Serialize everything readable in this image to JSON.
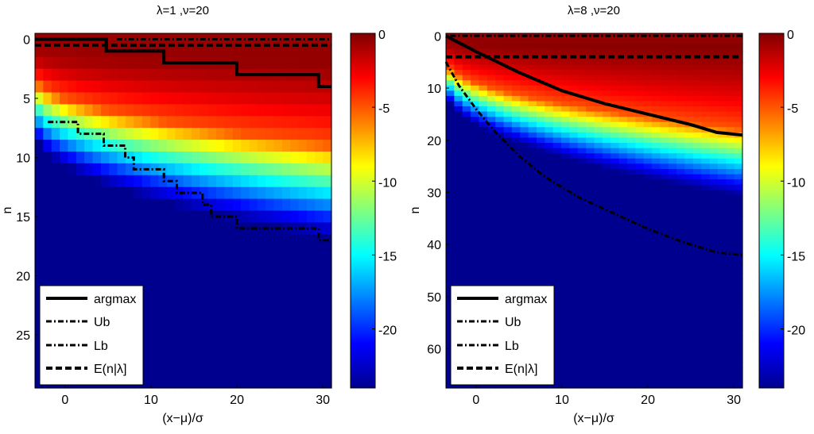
{
  "colormap": {
    "name": "jet",
    "stops": [
      "#00008f",
      "#0000ff",
      "#00ffff",
      "#ffff00",
      "#ff0000",
      "#800000"
    ]
  },
  "chart_data": [
    {
      "type": "heatmap",
      "title": "λ=1 ,ν=20",
      "xlabel": "(x−μ)/σ",
      "ylabel": "n",
      "xlim": [
        -3.5,
        31
      ],
      "ylim": [
        -0.5,
        29.5
      ],
      "xticks": [
        0,
        10,
        20,
        30
      ],
      "yticks": [
        0,
        5,
        10,
        15,
        20,
        25
      ],
      "n_bins": 30,
      "lower_boundary_coeffs": [
        3.2,
        0.98
      ],
      "log_prob_floor": -24,
      "colorbar": {
        "min": -24,
        "max": 0,
        "ticks": [
          0,
          -5,
          -10,
          -15,
          -20
        ]
      },
      "legend": [
        "argmax",
        "Ub",
        "Lb",
        "E(n|λ]"
      ],
      "series": [
        {
          "name": "argmax",
          "x": [
            -3.5,
            4.8,
            4.8,
            11.5,
            11.5,
            20,
            20,
            29.5,
            29.5,
            31
          ],
          "y": [
            0,
            0,
            1,
            1,
            2,
            2,
            3,
            3,
            4,
            4
          ]
        },
        {
          "name": "Ub",
          "x": [
            6,
            31
          ],
          "y": [
            0,
            0
          ]
        },
        {
          "name": "Lb",
          "x": [
            -2,
            1.5,
            1.5,
            4.5,
            4.5,
            7,
            7,
            8,
            8,
            11.5,
            11.5,
            13,
            13,
            16,
            16,
            17,
            17,
            20,
            20,
            22,
            22,
            24,
            24,
            29.5,
            29.5,
            31
          ],
          "y": [
            7,
            7,
            8,
            8,
            9,
            9,
            10,
            10,
            11,
            11,
            12,
            12,
            13,
            13,
            14,
            14,
            15,
            15,
            16,
            16,
            16,
            16,
            16,
            16,
            17,
            17
          ]
        },
        {
          "name": "E(n|λ]",
          "x": [
            -3.5,
            31
          ],
          "y": [
            0.5,
            0.5
          ]
        }
      ]
    },
    {
      "type": "heatmap",
      "title": "λ=8 ,ν=20",
      "xlabel": "(x−μ)/σ",
      "ylabel": "n",
      "xlim": [
        -3.5,
        31
      ],
      "ylim": [
        -0.5,
        67.5
      ],
      "xticks": [
        0,
        10,
        20,
        30
      ],
      "yticks": [
        0,
        10,
        20,
        30,
        40,
        50,
        60
      ],
      "n_bins": 68,
      "lower_boundary_coeffs": [
        5,
        2.2
      ],
      "log_prob_floor": -24,
      "colorbar": {
        "min": -24,
        "max": 0,
        "ticks": [
          0,
          -5,
          -10,
          -15,
          -20
        ]
      },
      "legend": [
        "argmax",
        "Ub",
        "Lb",
        "E(n|λ]"
      ],
      "series": [
        {
          "name": "argmax",
          "x": [
            -3.5,
            0,
            5,
            10,
            15,
            20,
            25,
            28,
            31
          ],
          "y": [
            0,
            3,
            7,
            10.5,
            13,
            15,
            17,
            18.5,
            19
          ]
        },
        {
          "name": "Ub",
          "x": [
            -3,
            31
          ],
          "y": [
            0,
            0
          ]
        },
        {
          "name": "Lb",
          "x": [
            -3.5,
            -2,
            0,
            2,
            5,
            8,
            12,
            16,
            20,
            24,
            28,
            31
          ],
          "y": [
            5,
            9.5,
            14,
            18,
            23,
            27,
            31,
            34,
            37,
            39.5,
            41.5,
            42
          ]
        },
        {
          "name": "E(n|λ]",
          "x": [
            -3.5,
            31
          ],
          "y": [
            4,
            4
          ]
        }
      ]
    }
  ]
}
